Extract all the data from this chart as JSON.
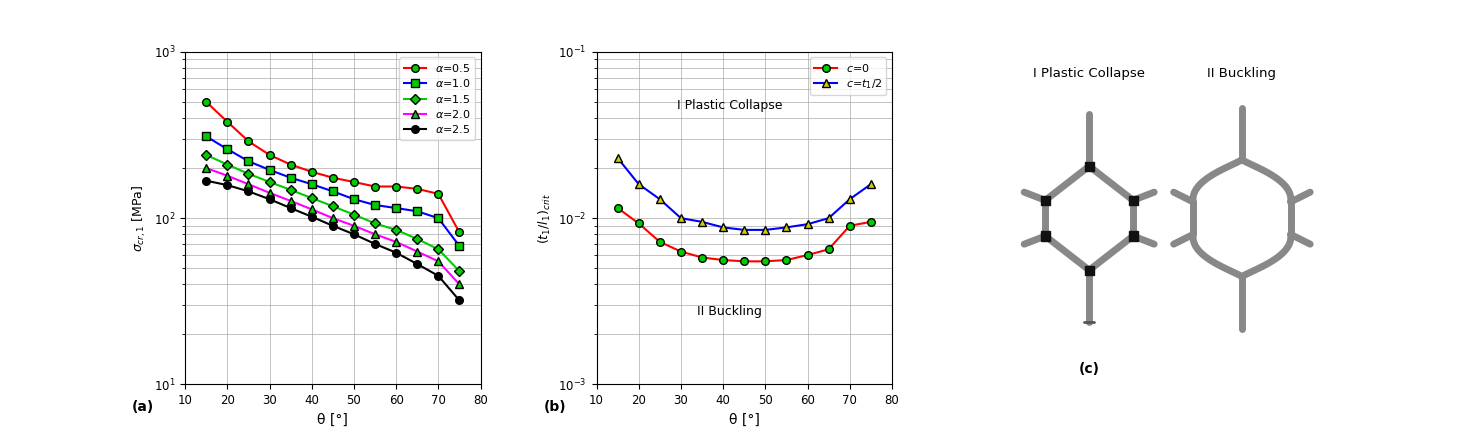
{
  "theta": [
    15,
    20,
    25,
    30,
    35,
    40,
    45,
    50,
    55,
    60,
    65,
    70,
    75
  ],
  "sigma_alpha05": [
    500,
    380,
    290,
    240,
    210,
    190,
    175,
    165,
    155,
    155,
    150,
    140,
    82
  ],
  "sigma_alpha10": [
    310,
    260,
    220,
    195,
    175,
    160,
    145,
    130,
    120,
    115,
    110,
    100,
    68
  ],
  "sigma_alpha15": [
    240,
    210,
    185,
    165,
    148,
    132,
    118,
    105,
    93,
    85,
    75,
    65,
    48
  ],
  "sigma_alpha20": [
    200,
    180,
    160,
    142,
    127,
    113,
    100,
    90,
    80,
    72,
    63,
    55,
    40
  ],
  "sigma_alpha25": [
    168,
    158,
    145,
    130,
    115,
    102,
    90,
    80,
    70,
    62,
    53,
    45,
    32
  ],
  "theta_b": [
    15,
    20,
    25,
    30,
    35,
    40,
    45,
    50,
    55,
    60,
    65,
    70,
    75
  ],
  "c0_vals": [
    0.0115,
    0.0093,
    0.0072,
    0.0063,
    0.0058,
    0.0056,
    0.0055,
    0.0055,
    0.0056,
    0.006,
    0.0065,
    0.009,
    0.0095
  ],
  "ct1_vals": [
    0.023,
    0.016,
    0.013,
    0.01,
    0.0095,
    0.0088,
    0.0085,
    0.0085,
    0.0088,
    0.0092,
    0.01,
    0.013,
    0.016
  ],
  "colors_a": [
    "#ff0000",
    "#0000ff",
    "#00cc00",
    "#ff00ff",
    "#000000"
  ],
  "markers_a": [
    "o",
    "s",
    "D",
    "^",
    "o"
  ],
  "marker_facecolors_a": [
    "#00cc00",
    "#00cc00",
    "#00cc00",
    "#00cc00",
    "#000000"
  ],
  "labels_a": [
    "α=0.5",
    "α=1.0",
    "α=1.5",
    "α=2.0",
    "α=2.5"
  ],
  "color_c0": "#ff0000",
  "color_ct1": "#0000ff",
  "marker_c0": "o",
  "marker_ct1": "^",
  "mfc_c0": "#00cc00",
  "mfc_ct1": "#cccc00",
  "label_c0": "c=0",
  "label_ct1": "c=t₁/2",
  "xlabel_a": "θ [°]",
  "ylabel_a": "σ_{cr,1} [MPa]",
  "xlabel_b": "θ [°]",
  "ylabel_b": "(t_1/l_1)_{crit}",
  "text_plastic": "I Plastic Collapse",
  "text_buckling": "II Buckling",
  "label_a": "(a)",
  "label_b": "(b)",
  "label_c": "(c)",
  "title_plastic": "I Plastic Collapse",
  "title_buckling": "II Buckling",
  "ylim_a_low": 10,
  "ylim_a_high": 1000,
  "ylim_b_low": 0.001,
  "ylim_b_high": 0.1,
  "xlim_low": 10,
  "xlim_high": 80,
  "strut_gray": "#888888",
  "joint_black": "#111111"
}
